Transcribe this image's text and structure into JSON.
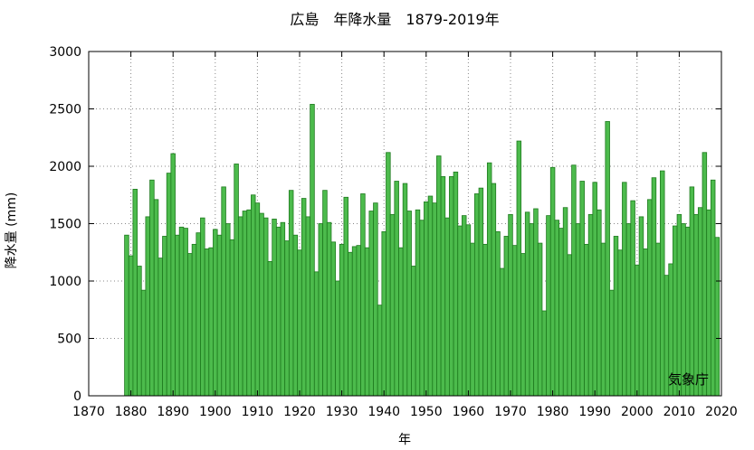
{
  "chart_data": {
    "type": "bar",
    "title": "広島　年降水量　1879-2019年",
    "xlabel": "年",
    "ylabel": "降水量 (mm)",
    "credit": "気象庁",
    "xlim": [
      1870,
      2020
    ],
    "ylim": [
      0,
      3000
    ],
    "xticks": [
      1870,
      1880,
      1890,
      1900,
      1910,
      1920,
      1930,
      1940,
      1950,
      1960,
      1970,
      1980,
      1990,
      2000,
      2010,
      2020
    ],
    "yticks": [
      0,
      500,
      1000,
      1500,
      2000,
      2500,
      3000
    ],
    "grid": true,
    "bar_color": "#4cbb4c",
    "bar_edge_color": "#1e7a1e",
    "series": [
      {
        "x": [
          1879,
          1880,
          1881,
          1882,
          1883,
          1884,
          1885,
          1886,
          1887,
          1888,
          1889,
          1890,
          1891,
          1892,
          1893,
          1894,
          1895,
          1896,
          1897,
          1898,
          1899,
          1900,
          1901,
          1902,
          1903,
          1904,
          1905,
          1906,
          1907,
          1908,
          1909,
          1910,
          1911,
          1912,
          1913,
          1914,
          1915,
          1916,
          1917,
          1918,
          1919,
          1920,
          1921,
          1922,
          1923,
          1924,
          1925,
          1926,
          1927,
          1928,
          1929,
          1930,
          1931,
          1932,
          1933,
          1934,
          1935,
          1936,
          1937,
          1938,
          1939,
          1940,
          1941,
          1942,
          1943,
          1944,
          1945,
          1946,
          1947,
          1948,
          1949,
          1950,
          1951,
          1952,
          1953,
          1954,
          1955,
          1956,
          1957,
          1958,
          1959,
          1960,
          1961,
          1962,
          1963,
          1964,
          1965,
          1966,
          1967,
          1968,
          1969,
          1970,
          1971,
          1972,
          1973,
          1974,
          1975,
          1976,
          1977,
          1978,
          1979,
          1980,
          1981,
          1982,
          1983,
          1984,
          1985,
          1986,
          1987,
          1988,
          1989,
          1990,
          1991,
          1992,
          1993,
          1994,
          1995,
          1996,
          1997,
          1998,
          1999,
          2000,
          2001,
          2002,
          2003,
          2004,
          2005,
          2006,
          2007,
          2008,
          2009,
          2010,
          2011,
          2012,
          2013,
          2014,
          2015,
          2016,
          2017,
          2018,
          2019
        ],
        "values": [
          1400,
          1220,
          1800,
          1130,
          920,
          1560,
          1880,
          1710,
          1200,
          1390,
          1940,
          2110,
          1400,
          1470,
          1460,
          1240,
          1320,
          1420,
          1550,
          1280,
          1290,
          1450,
          1400,
          1820,
          1500,
          1360,
          2020,
          1560,
          1610,
          1620,
          1750,
          1680,
          1590,
          1550,
          1170,
          1540,
          1470,
          1510,
          1350,
          1790,
          1400,
          1270,
          1720,
          1560,
          2540,
          1080,
          1500,
          1790,
          1510,
          1340,
          1000,
          1320,
          1730,
          1250,
          1300,
          1310,
          1760,
          1290,
          1610,
          1680,
          790,
          1430,
          2120,
          1580,
          1870,
          1290,
          1850,
          1610,
          1130,
          1620,
          1530,
          1690,
          1740,
          1680,
          2090,
          1910,
          1550,
          1910,
          1950,
          1480,
          1570,
          1490,
          1330,
          1760,
          1810,
          1320,
          2030,
          1850,
          1430,
          1110,
          1390,
          1580,
          1310,
          2220,
          1240,
          1600,
          1500,
          1630,
          1330,
          740,
          1570,
          1990,
          1530,
          1460,
          1640,
          1230,
          2010,
          1500,
          1870,
          1320,
          1580,
          1860,
          1620,
          1330,
          2390,
          920,
          1390,
          1270,
          1860,
          1500,
          1700,
          1140,
          1560,
          1280,
          1710,
          1900,
          1330,
          1960,
          1050,
          1150,
          1480,
          1580,
          1500,
          1470,
          1820,
          1580,
          1640,
          2120,
          1620,
          1880,
          1380
        ]
      }
    ]
  }
}
